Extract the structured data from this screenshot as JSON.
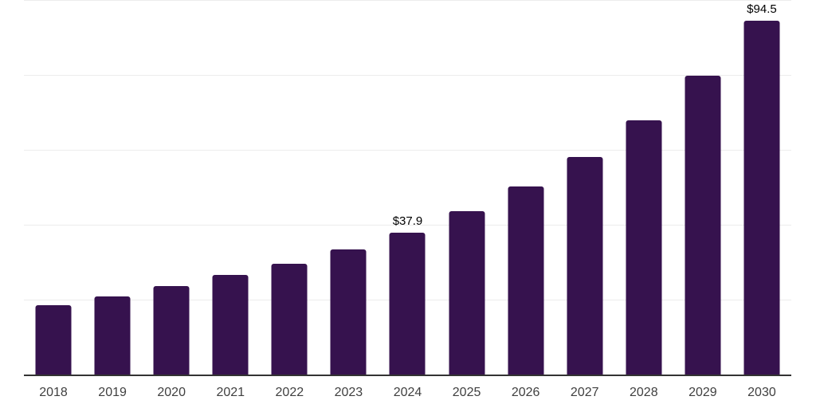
{
  "chart_data": {
    "type": "bar",
    "title": "",
    "xlabel": "",
    "ylabel": "",
    "categories": [
      "2018",
      "2019",
      "2020",
      "2021",
      "2022",
      "2023",
      "2024",
      "2025",
      "2026",
      "2027",
      "2028",
      "2029",
      "2030"
    ],
    "values": [
      18.6,
      20.9,
      23.6,
      26.5,
      29.5,
      33.4,
      37.9,
      43.7,
      50.3,
      58.0,
      67.8,
      79.8,
      94.5
    ],
    "data_labels": [
      "",
      "",
      "",
      "",
      "",
      "",
      "$37.9",
      "",
      "",
      "",
      "",
      "",
      "$94.5"
    ],
    "ylim": [
      0,
      100
    ],
    "gridline_values": [
      20,
      40,
      60,
      80,
      100
    ],
    "grid_on": true,
    "legend_position": "none",
    "colors": {
      "bar": "#36124E",
      "gridline": "#ececec",
      "axis_line": "#333333",
      "tick_label": "#404040",
      "data_label": "#000000",
      "background": "#ffffff"
    }
  }
}
